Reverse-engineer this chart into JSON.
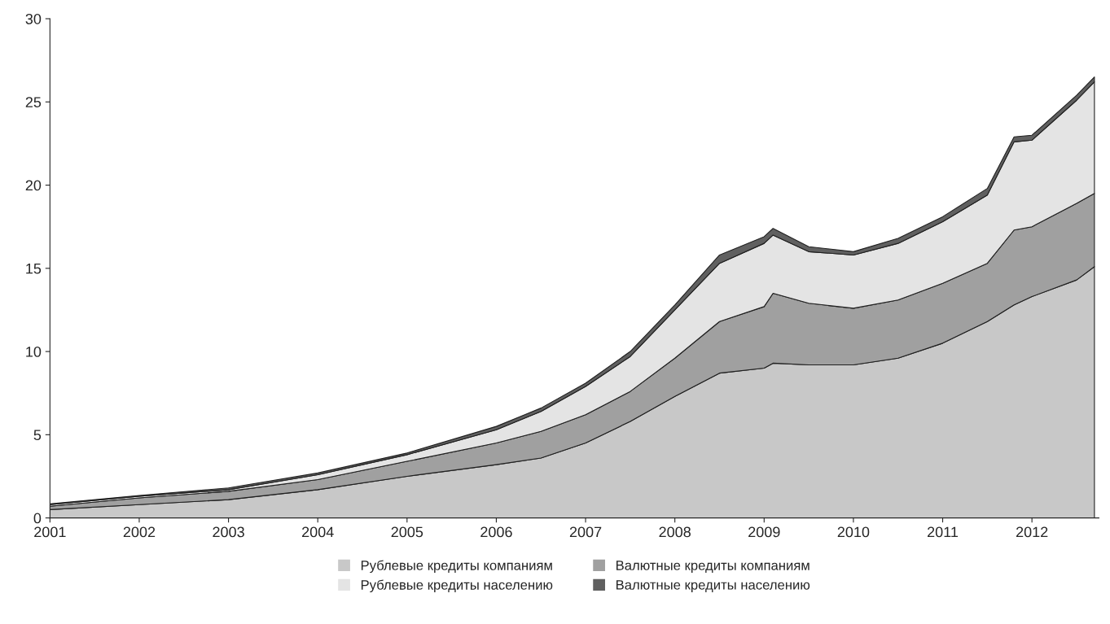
{
  "chart_data": {
    "type": "area",
    "stacked": true,
    "x": [
      2001,
      2002,
      2003,
      2004,
      2005,
      2006,
      2006.5,
      2007,
      2007.5,
      2008,
      2008.5,
      2009,
      2009.1,
      2009.5,
      2010,
      2010.5,
      2011,
      2011.5,
      2011.8,
      2012,
      2012.5,
      2012.7
    ],
    "series": [
      {
        "name": "Рублевые кредиты компаниям",
        "color": "#c8c8c8",
        "values": [
          0.5,
          0.8,
          1.1,
          1.7,
          2.5,
          3.2,
          3.6,
          4.5,
          5.8,
          7.3,
          8.7,
          9.0,
          9.3,
          9.2,
          9.2,
          9.6,
          10.5,
          11.8,
          12.8,
          13.3,
          14.3,
          15.1
        ]
      },
      {
        "name": "Валютные кредиты компаниям",
        "color": "#a0a0a0",
        "values": [
          0.2,
          0.4,
          0.5,
          0.6,
          0.9,
          1.3,
          1.6,
          1.7,
          1.8,
          2.3,
          3.1,
          3.7,
          4.2,
          3.7,
          3.4,
          3.5,
          3.6,
          3.5,
          4.5,
          4.2,
          4.6,
          4.4
        ]
      },
      {
        "name": "Рублевые кредиты населению",
        "color": "#e4e4e4",
        "values": [
          0.1,
          0.1,
          0.1,
          0.3,
          0.4,
          0.8,
          1.2,
          1.7,
          2.1,
          2.9,
          3.5,
          3.8,
          3.5,
          3.1,
          3.2,
          3.4,
          3.7,
          4.1,
          5.3,
          5.2,
          6.2,
          6.7
        ]
      },
      {
        "name": "Валютные кредиты населению",
        "color": "#606060",
        "values": [
          0.05,
          0.05,
          0.1,
          0.1,
          0.1,
          0.2,
          0.2,
          0.2,
          0.3,
          0.3,
          0.5,
          0.4,
          0.4,
          0.3,
          0.2,
          0.3,
          0.3,
          0.4,
          0.3,
          0.3,
          0.3,
          0.3
        ]
      }
    ],
    "xlim": [
      2001,
      2012.75
    ],
    "xticks": [
      2001,
      2002,
      2003,
      2004,
      2005,
      2006,
      2007,
      2008,
      2009,
      2010,
      2011,
      2012
    ],
    "ylim": [
      0,
      30
    ],
    "yticks": [
      0,
      5,
      10,
      15,
      20,
      25,
      30
    ],
    "grid": false,
    "legend": "bottom"
  }
}
